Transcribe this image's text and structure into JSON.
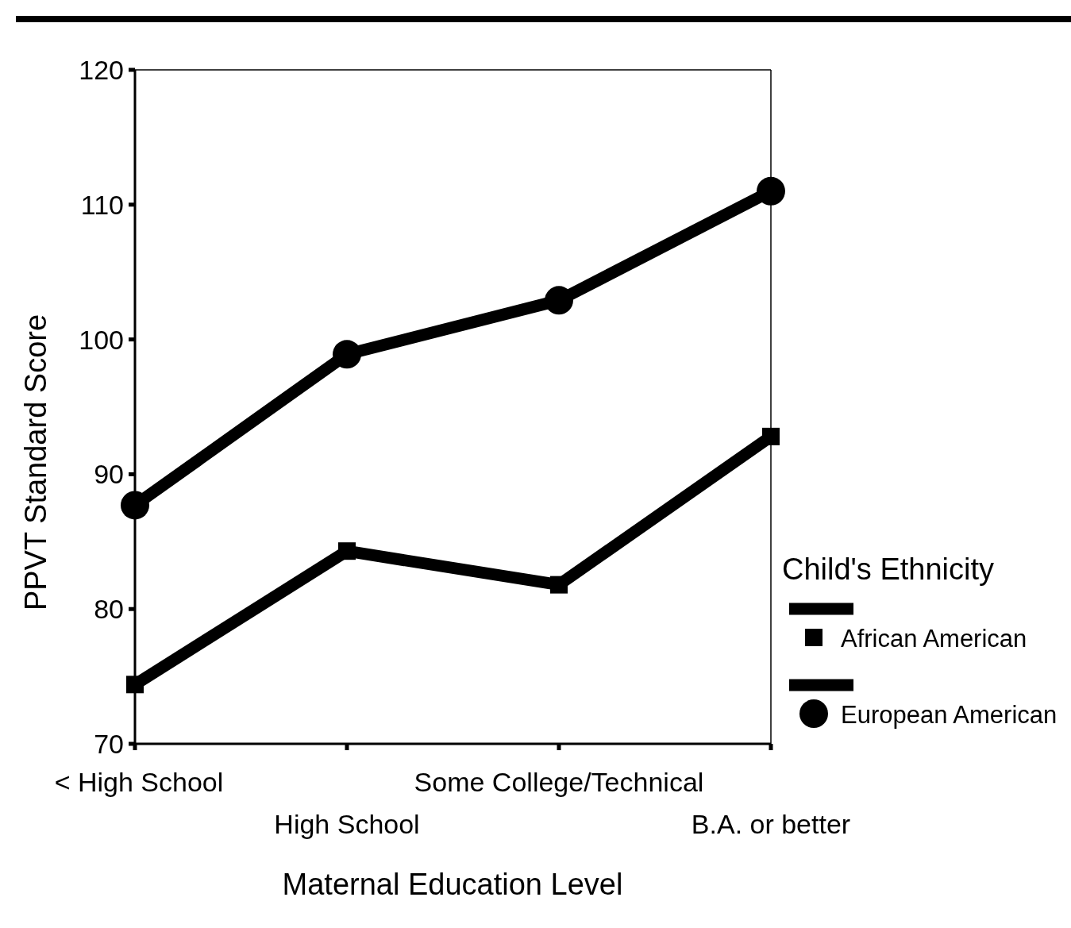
{
  "chart_data": {
    "type": "line",
    "xlabel": "Maternal Education Level",
    "ylabel": "PPVT Standard Score",
    "legend_title": "Child's Ethnicity",
    "categories": [
      "< High School",
      "High School",
      "Some College/Technical",
      "B.A. or better"
    ],
    "series": [
      {
        "name": "African American",
        "color": "#000000",
        "marker": "square",
        "values": [
          74.4,
          84.3,
          81.8,
          92.8
        ]
      },
      {
        "name": "European American",
        "color": "#000000",
        "marker": "circle",
        "values": [
          87.7,
          98.9,
          102.9,
          111.0
        ]
      }
    ],
    "ylim": [
      70,
      120
    ],
    "yticks": [
      70,
      80,
      90,
      100,
      110,
      120
    ],
    "grid": false,
    "legend": "right",
    "line_style": "solid"
  }
}
